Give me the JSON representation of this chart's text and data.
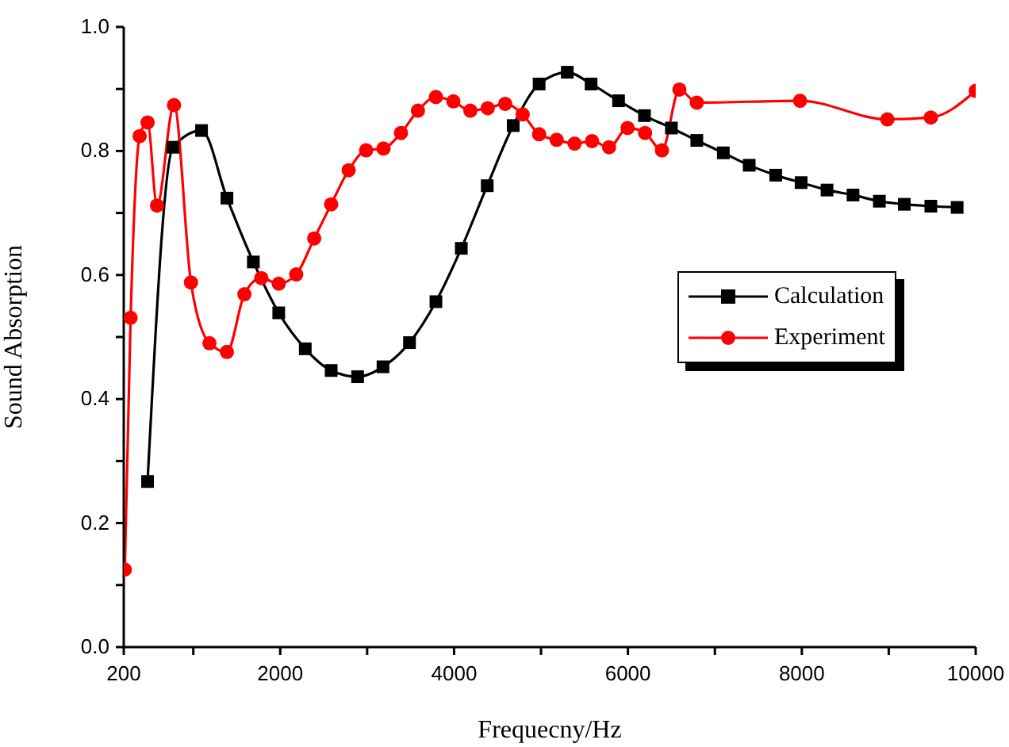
{
  "chart_data": {
    "type": "line",
    "xlabel": "Frequecny/Hz",
    "ylabel": "Sound Absorption",
    "xlim": [
      200,
      10000
    ],
    "ylim": [
      0,
      1
    ],
    "xticks": [
      200,
      {
        "value": 1000,
        "label": null
      },
      2000,
      {
        "value": 3000,
        "label": null
      },
      4000,
      {
        "value": 5000,
        "label": null
      },
      6000,
      {
        "value": 7000,
        "label": null
      },
      8000,
      {
        "value": 9000,
        "label": null
      },
      10000
    ],
    "yticks": [
      {
        "value": 0,
        "label": "0.0"
      },
      {
        "value": 0.1,
        "label": null
      },
      {
        "value": 0.2,
        "label": "0.2"
      },
      {
        "value": 0.3,
        "label": null
      },
      {
        "value": 0.4,
        "label": "0.4"
      },
      {
        "value": 0.5,
        "label": null
      },
      {
        "value": 0.6,
        "label": "0.6"
      },
      {
        "value": 0.7,
        "label": null
      },
      {
        "value": 0.8,
        "label": "0.8"
      },
      {
        "value": 0.9,
        "label": null
      },
      {
        "value": 1,
        "label": "1.0"
      }
    ],
    "legend": "right",
    "line_style": "solid",
    "series": [
      {
        "name": "Calculation",
        "color": "#000000",
        "marker": "square",
        "x": [
          474,
          766,
          1095,
          1387,
          1691,
          1983,
          2288,
          2586,
          2890,
          3182,
          3487,
          3791,
          4083,
          4381,
          4680,
          4978,
          5302,
          5576,
          5892,
          6190,
          6500,
          6792,
          7097,
          7395,
          7700,
          7992,
          8290,
          8589,
          8892,
          9179,
          9484,
          9787
        ],
        "values": [
          0.267,
          0.806,
          0.833,
          0.724,
          0.621,
          0.539,
          0.481,
          0.446,
          0.436,
          0.452,
          0.491,
          0.557,
          0.643,
          0.744,
          0.841,
          0.908,
          0.927,
          0.908,
          0.881,
          0.857,
          0.837,
          0.817,
          0.797,
          0.777,
          0.761,
          0.749,
          0.737,
          0.729,
          0.719,
          0.714,
          0.711,
          0.709
        ]
      },
      {
        "name": "Experiment",
        "color": "#ff0000",
        "marker": "circle",
        "x": [
          212,
          279,
          383,
          474,
          583,
          778,
          973,
          1186,
          1387,
          1588,
          1782,
          1983,
          2184,
          2391,
          2586,
          2787,
          2988,
          3188,
          3389,
          3584,
          3791,
          3992,
          4187,
          4387,
          4588,
          4789,
          4978,
          5180,
          5386,
          5587,
          5783,
          5996,
          6197,
          6391,
          6592,
          6792,
          7980,
          8984,
          9484,
          10000
        ],
        "values": [
          0.125,
          0.531,
          0.824,
          0.846,
          0.712,
          0.874,
          0.588,
          0.49,
          0.476,
          0.569,
          0.595,
          0.586,
          0.601,
          0.659,
          0.714,
          0.769,
          0.801,
          0.804,
          0.829,
          0.865,
          0.887,
          0.88,
          0.865,
          0.869,
          0.876,
          0.859,
          0.827,
          0.818,
          0.812,
          0.816,
          0.806,
          0.837,
          0.829,
          0.801,
          0.899,
          0.878,
          0.881,
          0.851,
          0.854,
          0.897
        ]
      }
    ]
  }
}
